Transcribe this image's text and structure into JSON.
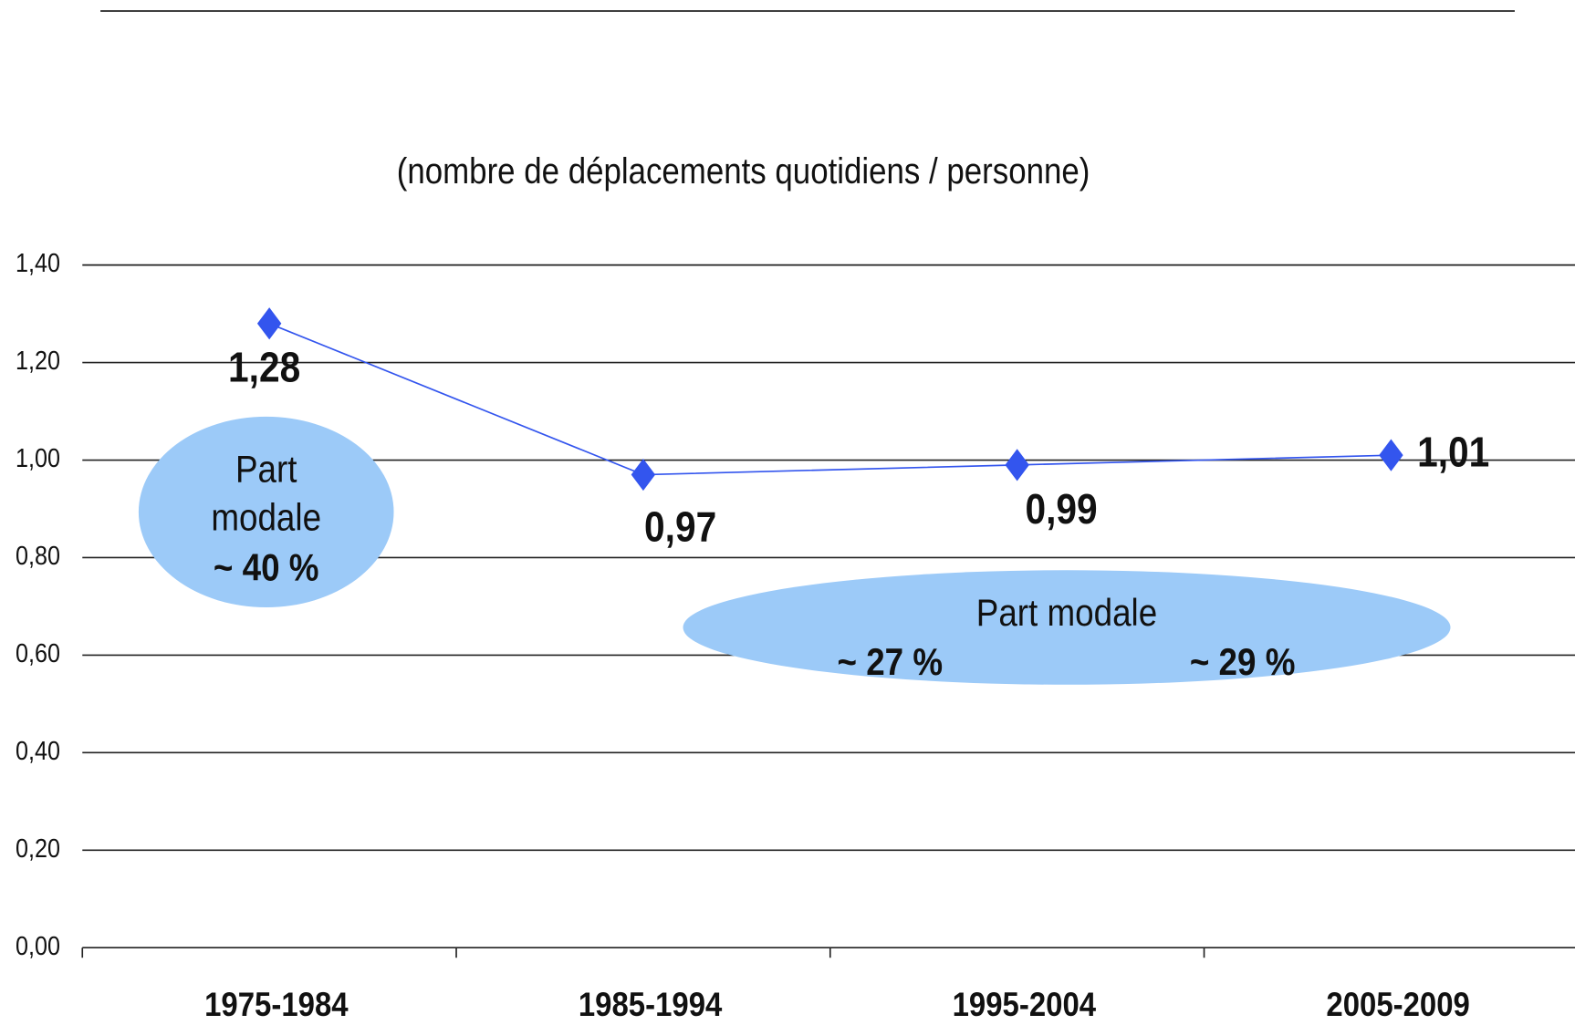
{
  "chart_data": {
    "type": "line",
    "subtitle": "(nombre de déplacements quotidiens / personne)",
    "categories": [
      "1975-1984",
      "1985-1994",
      "1995-2004",
      "2005-2009"
    ],
    "series": [
      {
        "name": "déplacements",
        "color": "#3355ee",
        "values": [
          1.28,
          0.97,
          0.99,
          1.01
        ],
        "value_labels": [
          "1,28",
          "0,97",
          "0,99",
          "1,01"
        ]
      }
    ],
    "ylim": [
      0,
      1.4
    ],
    "yticks": [
      {
        "value": 0,
        "label": "0,00"
      },
      {
        "value": 0.2,
        "label": "0,20"
      },
      {
        "value": 0.4,
        "label": "0,40"
      },
      {
        "value": 0.6,
        "label": "0,60"
      },
      {
        "value": 0.8,
        "label": "0,80"
      },
      {
        "value": 1.0,
        "label": "1,00"
      },
      {
        "value": 1.2,
        "label": "1,20"
      },
      {
        "value": 1.4,
        "label": "1,40"
      }
    ],
    "grid": true,
    "annotations": [
      "Part",
      "modale",
      "~ 40 %",
      "Part modale",
      "~ 27 %",
      "~ 29 %"
    ]
  }
}
